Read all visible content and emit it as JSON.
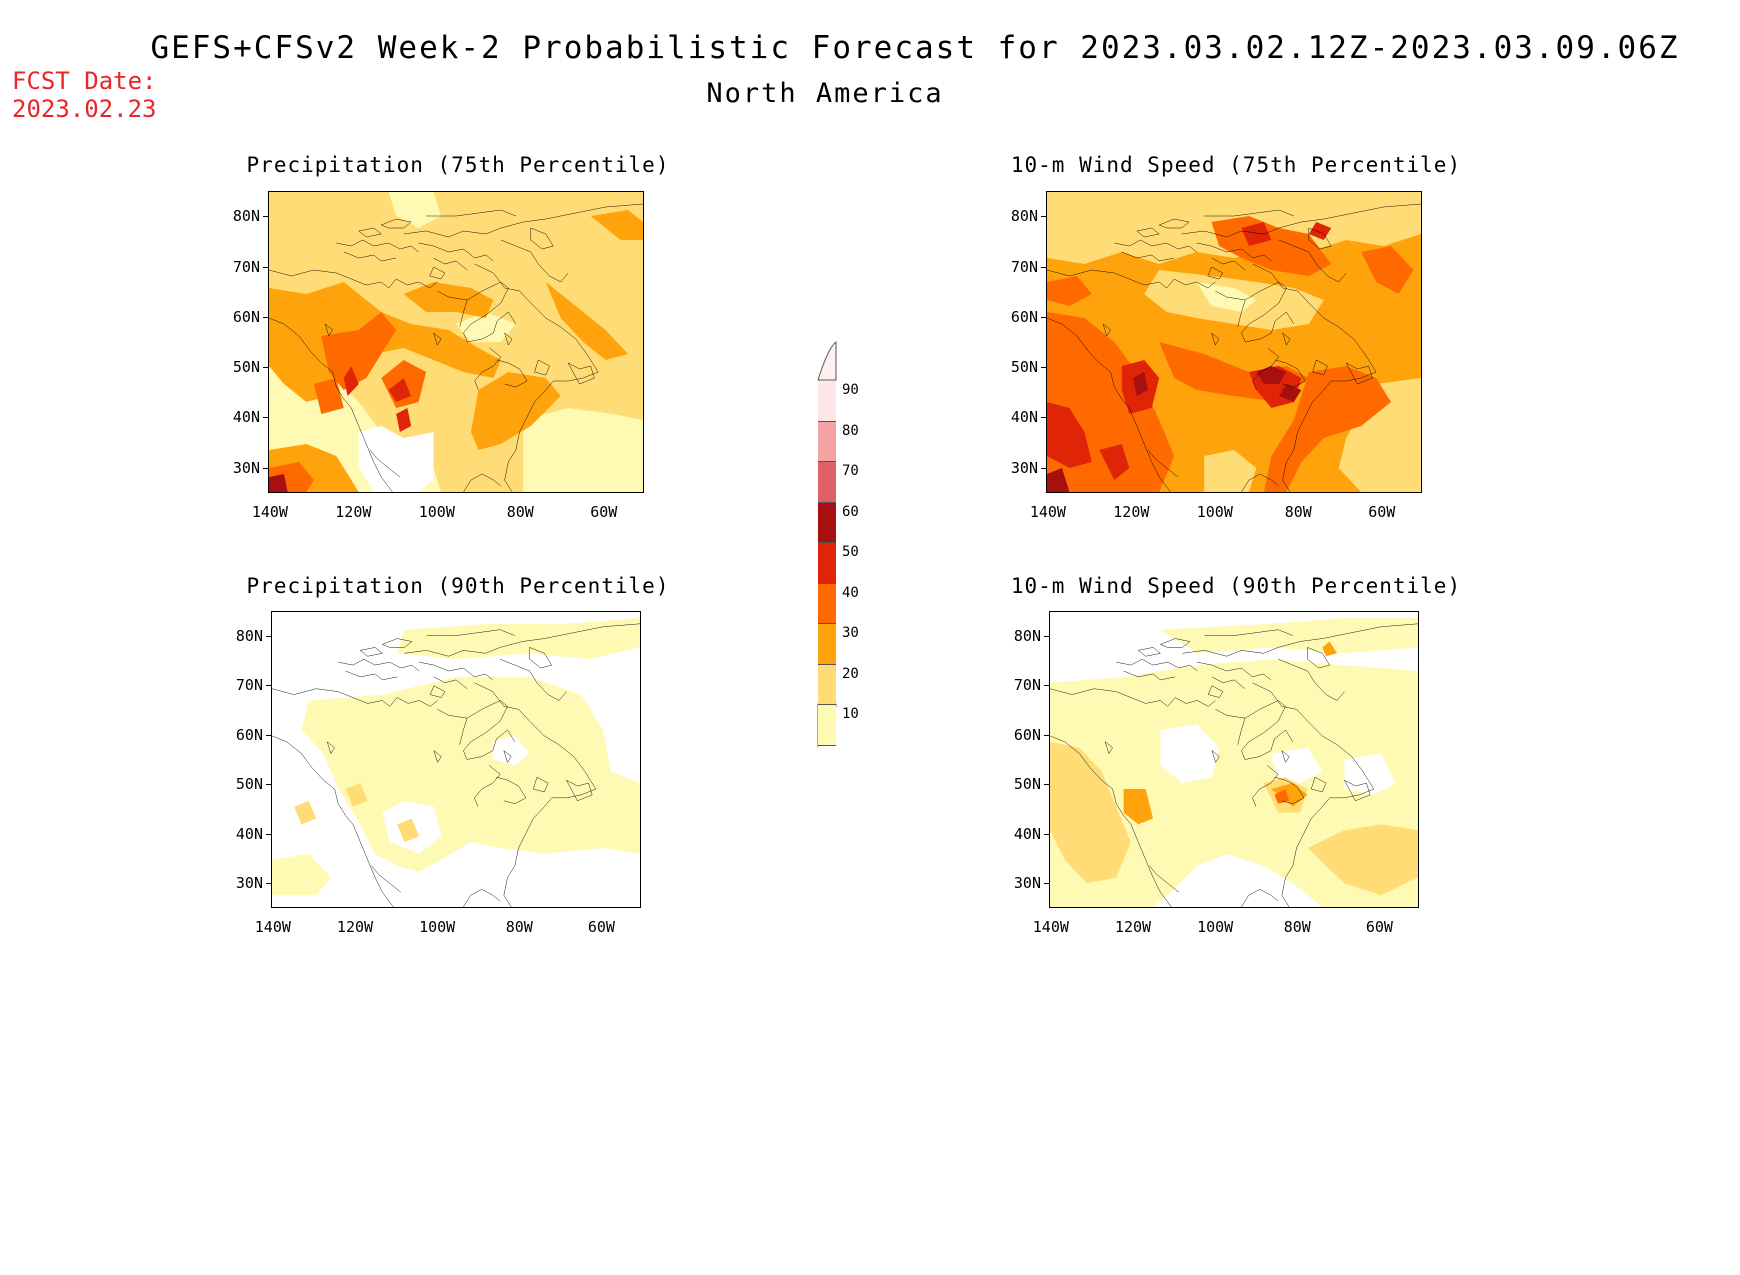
{
  "header": {
    "title": "GEFS+CFSv2 Week-2 Probabilistic Forecast for 2023.03.02.12Z-2023.03.09.06Z",
    "subtitle": "North America",
    "fcst_label": "FCST Date:",
    "fcst_date": "2023.02.23"
  },
  "panels": [
    {
      "title": "Precipitation (75th Percentile)"
    },
    {
      "title": "10-m Wind Speed (75th Percentile)"
    },
    {
      "title": "Precipitation (90th Percentile)"
    },
    {
      "title": "10-m Wind Speed (90th Percentile)"
    }
  ],
  "axes": {
    "lat_labels": [
      "80N",
      "70N",
      "60N",
      "50N",
      "40N",
      "30N"
    ],
    "lon_labels": [
      "140W",
      "120W",
      "100W",
      "80W",
      "60W"
    ]
  },
  "colorbar": {
    "labels": [
      "90",
      "80",
      "70",
      "60",
      "50",
      "40",
      "30",
      "20",
      "10"
    ],
    "colors": [
      "#fce6e6",
      "#f3a3a3",
      "#e0606a",
      "#a80f0f",
      "#e02408",
      "#ff6a00",
      "#ffa30c",
      "#ffdc75",
      "#fffab3"
    ]
  }
}
